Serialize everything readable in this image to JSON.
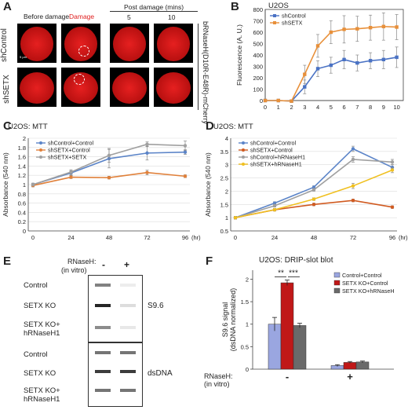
{
  "panels": {
    "A": {
      "letter": "A",
      "col_before": "Before damage",
      "col_damage": "Damage",
      "col_post": "Post damage (mins)",
      "post_times": [
        "5",
        "10"
      ],
      "rows": [
        "shControl",
        "shSETX"
      ],
      "side_label": "bRNaseH(D10R-E48R)-mCherry",
      "scale_text": "5 μm",
      "colors": {
        "damage_label": "#e02020",
        "nucleus": "#d41a1a",
        "bg": "#000000"
      }
    },
    "B": {
      "letter": "B"
    },
    "C": {
      "letter": "C"
    },
    "D": {
      "letter": "D"
    },
    "E": {
      "letter": "E",
      "rnaseh_label": "RNaseH:",
      "rnaseh_sub": "(in vitro)",
      "minus": "-",
      "plus": "+",
      "rows": [
        "Control",
        "SETX KO",
        "SETX KO+",
        "hRNaseH1"
      ],
      "top_blot": "S9.6",
      "bottom_blot": "dsDNA",
      "top_intensity": [
        0.55,
        0.95,
        0.5
      ],
      "top_intensity_plus": [
        0.08,
        0.15,
        0.1
      ],
      "bottom_intensity": [
        0.6,
        0.85,
        0.6
      ],
      "bottom_intensity_plus": [
        0.6,
        0.85,
        0.6
      ]
    },
    "F": {
      "letter": "F",
      "rnaseh_label": "RNaseH:",
      "rnaseh_sub": "(in vitro)",
      "minus": "-",
      "plus": "+",
      "sig1": "**",
      "sig2": "***"
    }
  },
  "chart_data": [
    {
      "id": "B",
      "type": "line",
      "title": "U2OS",
      "xlabel": "",
      "ylabel": "Fluorescence (A. U.)",
      "xlim": [
        0,
        10.5
      ],
      "ylim": [
        0,
        800
      ],
      "xticks": [
        0,
        1,
        2,
        3,
        4,
        5,
        6,
        7,
        8,
        9,
        10
      ],
      "x": [
        0,
        1,
        2,
        3,
        4,
        5,
        6,
        7,
        8,
        9,
        10
      ],
      "series": [
        {
          "name": "shControl",
          "color": "#4a72c4",
          "values": [
            0,
            0,
            -5,
            120,
            280,
            310,
            360,
            330,
            350,
            360,
            380
          ],
          "err": [
            0,
            0,
            0,
            60,
            70,
            70,
            80,
            70,
            70,
            80,
            90
          ]
        },
        {
          "name": "shSETX",
          "color": "#e8903a",
          "values": [
            0,
            0,
            -5,
            230,
            480,
            600,
            625,
            630,
            640,
            650,
            645
          ],
          "err": [
            0,
            0,
            0,
            80,
            100,
            100,
            120,
            110,
            110,
            120,
            110
          ]
        }
      ],
      "legend": "top-left"
    },
    {
      "id": "C",
      "type": "line",
      "title": "U2OS: MTT",
      "xlabel": "(hr)",
      "ylabel": "Absorbance (540 nm)",
      "xticks": [
        "0",
        "24",
        "48",
        "72",
        "96"
      ],
      "ylim": [
        0,
        2
      ],
      "yticks": [
        0,
        0.2,
        0.4,
        0.6,
        0.8,
        1,
        1.2,
        1.4,
        1.6,
        1.8,
        2
      ],
      "categories": [
        "0",
        "24",
        "48",
        "72",
        "96"
      ],
      "series": [
        {
          "name": "shControl+Control",
          "color": "#5b84c8",
          "values": [
            1.0,
            1.25,
            1.56,
            1.68,
            1.7
          ],
          "err": [
            0.03,
            0.05,
            0.2,
            0.15,
            0.05
          ]
        },
        {
          "name": "shSETX+Control",
          "color": "#e0803a",
          "values": [
            0.98,
            1.16,
            1.15,
            1.26,
            1.18
          ],
          "err": [
            0.03,
            0.03,
            0.03,
            0.05,
            0.03
          ]
        },
        {
          "name": "shSETX+SETX",
          "color": "#a0a0a0",
          "values": [
            1.0,
            1.27,
            1.63,
            1.87,
            1.84
          ],
          "err": [
            0.03,
            0.05,
            0.15,
            0.05,
            0.1
          ]
        }
      ],
      "legend": "top-left"
    },
    {
      "id": "D",
      "type": "line",
      "title": "U2OS: MTT",
      "xlabel": "(hr)",
      "ylabel": "Absorbance (540 nm)",
      "xticks": [
        "0",
        "24",
        "48",
        "72",
        "96"
      ],
      "ylim": [
        0.5,
        4
      ],
      "yticks": [
        0.5,
        1,
        1.5,
        2,
        2.5,
        3,
        3.5,
        4
      ],
      "categories": [
        "0",
        "24",
        "48",
        "72",
        "96"
      ],
      "series": [
        {
          "name": "shControl+Control",
          "color": "#5b84c8",
          "values": [
            1.0,
            1.55,
            2.15,
            3.6,
            2.9
          ],
          "err": [
            0.05,
            0.05,
            0.05,
            0.1,
            0.1
          ]
        },
        {
          "name": "shSETX+Control",
          "color": "#d05a20",
          "values": [
            1.0,
            1.3,
            1.5,
            1.65,
            1.4
          ],
          "err": [
            0.05,
            0.05,
            0.05,
            0.05,
            0.05
          ]
        },
        {
          "name": "shControl+hRNaseH1",
          "color": "#a0a0a0",
          "values": [
            1.0,
            1.45,
            2.05,
            3.2,
            3.1
          ],
          "err": [
            0.05,
            0.05,
            0.05,
            0.1,
            0.1
          ]
        },
        {
          "name": "shSETX+hRNaseH1",
          "color": "#f0c020",
          "values": [
            1.0,
            1.3,
            1.7,
            2.2,
            2.8
          ],
          "err": [
            0.05,
            0.05,
            0.05,
            0.1,
            0.1
          ]
        }
      ],
      "legend": "top-left"
    },
    {
      "id": "F",
      "type": "bar",
      "title": "U2OS: DRIP-slot blot",
      "xlabel": "",
      "ylabel": "S9.6 signal (dsDNA normalized)",
      "ylim": [
        0,
        2.2
      ],
      "categories": [
        "-",
        "+"
      ],
      "series": [
        {
          "name": "Control+Control",
          "color": "#9aa6e0",
          "values": [
            1.0,
            0.08
          ],
          "err": [
            0.15,
            0.02
          ]
        },
        {
          "name": "SETX KO+Control",
          "color": "#c01818",
          "values": [
            1.92,
            0.15
          ],
          "err": [
            0.06,
            0.02
          ]
        },
        {
          "name": "SETX KO+hRNaseH",
          "color": "#6a6a6a",
          "values": [
            0.97,
            0.16
          ],
          "err": [
            0.05,
            0.02
          ]
        }
      ],
      "legend": "top-right"
    }
  ]
}
